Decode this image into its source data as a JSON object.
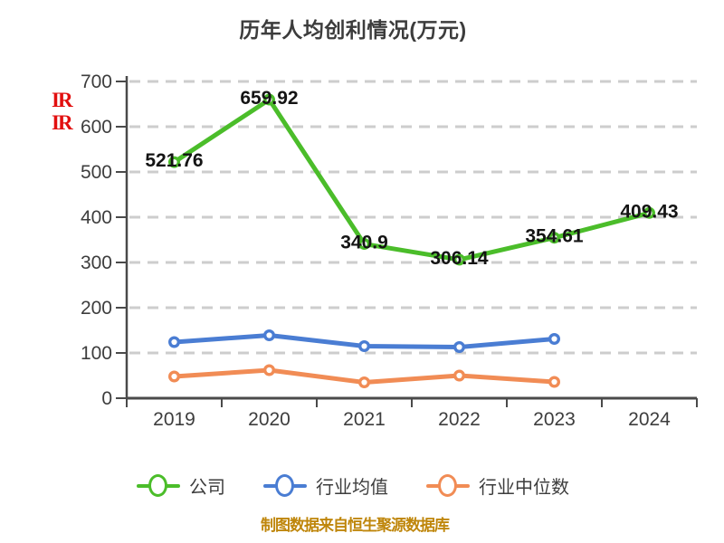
{
  "title": "历年人均创利情况(万元)",
  "watermark": {
    "lines": [
      "IR",
      "IR"
    ],
    "color": "#e20f0f"
  },
  "source_note": "制图数据来自恒生聚源数据库",
  "colors": {
    "background": "#ffffff",
    "title_text": "#3c3c3c",
    "axis": "#4a4a4a",
    "tick_label": "#3d3d3d",
    "gridline": "#cdcdcd",
    "data_label": "#141414",
    "source_note": "#bf860b",
    "company_green": "#4bbd2a",
    "industry_avg_blue": "#4a7dd3",
    "industry_median_orange": "#f18c55"
  },
  "chart_data": {
    "type": "line",
    "title": "历年人均创利情况(万元)",
    "categories": [
      "2019",
      "2020",
      "2021",
      "2022",
      "2023",
      "2024"
    ],
    "series": [
      {
        "name": "公司",
        "color": "#4bbd2a",
        "values": [
          521.76,
          659.92,
          340.9,
          306.14,
          354.61,
          409.43
        ],
        "point_labels": [
          "521.76",
          "659.92",
          "340.9",
          "306.14",
          "354.61",
          "409.43"
        ]
      },
      {
        "name": "行业均值",
        "color": "#4a7dd3",
        "values": [
          124,
          139,
          115,
          113,
          131,
          null
        ],
        "point_labels": []
      },
      {
        "name": "行业中位数",
        "color": "#f18c55",
        "values": [
          48,
          62,
          35,
          50,
          36,
          null
        ],
        "point_labels": []
      }
    ],
    "xlabel": "",
    "ylabel": "",
    "ylim": [
      0,
      700
    ],
    "yticks": [
      0,
      100,
      200,
      300,
      400,
      500,
      600,
      700
    ],
    "grid": "horizontal-dashed",
    "legend_position": "bottom",
    "marker_style": "hollow-circle"
  }
}
